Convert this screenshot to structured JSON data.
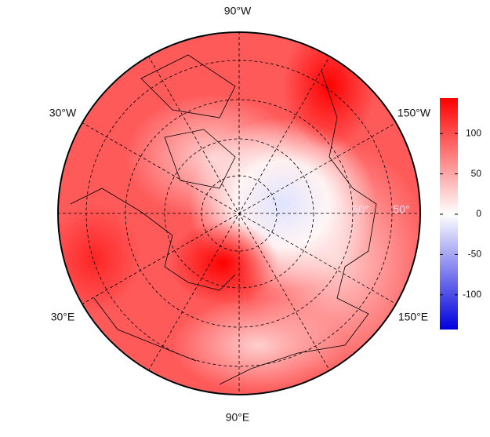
{
  "map": {
    "longitude_labels": [
      "90°W",
      "30°W",
      "150°W",
      "30°E",
      "150°E",
      "90°E"
    ],
    "latitude_labels": [
      "60°",
      "50°"
    ],
    "colorbar": {
      "lim": [
        -143,
        144
      ],
      "ticks": [
        -100,
        -50,
        0,
        50,
        100
      ],
      "colors": [
        "#0000dd",
        "#ffffff",
        "#ff0000"
      ]
    }
  }
}
